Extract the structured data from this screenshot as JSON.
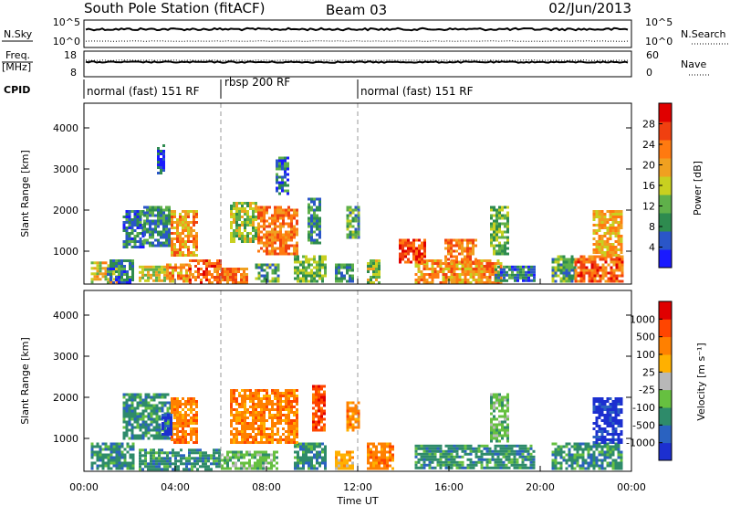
{
  "header": {
    "station": "South Pole Station (fitACF)",
    "beam": "Beam 03",
    "date": "02/Jun/2013"
  },
  "panels": {
    "nsky": {
      "left_label": "N.Sky",
      "left_ticks": [
        "10^5",
        "10^0"
      ],
      "right_label": "N.Search",
      "right_ticks": [
        "10^5",
        "10^0"
      ]
    },
    "freq": {
      "left_label_1": "Freq.",
      "left_label_2": "[MHz]",
      "left_ticks": [
        "18",
        "8"
      ],
      "right_label": "Nave",
      "right_ticks": [
        "60",
        "0"
      ]
    },
    "cpid": {
      "label": "CPID",
      "modes": [
        {
          "text": "normal (fast) 151 RF",
          "start_hour": 0
        },
        {
          "text": "rbsp 200 RF",
          "start_hour": 6
        },
        {
          "text": "normal (fast) 151 RF",
          "start_hour": 12
        }
      ]
    }
  },
  "colors": {
    "power_scale": [
      "#1a1aff",
      "#2a56c8",
      "#2e8b4f",
      "#5fb04a",
      "#c8d020",
      "#f0a020",
      "#ff7a10",
      "#f04010",
      "#e00000"
    ],
    "velocity_scale": [
      "#1c2fd0",
      "#2a62c0",
      "#2e8b6a",
      "#66c040",
      "#b8b8b8",
      "#ffb000",
      "#ff8000",
      "#ff4500",
      "#e00000"
    ]
  },
  "chart_data": [
    {
      "type": "heatmap",
      "name": "power",
      "ylabel": "Slant Range [km]",
      "yticks": [
        1000,
        2000,
        3000,
        4000
      ],
      "ylim": [
        200,
        4600
      ],
      "xlim": [
        0,
        24
      ],
      "colorbar": {
        "label": "Power [dB]",
        "ticks": [
          "4",
          "8",
          "12",
          "16",
          "20",
          "24",
          "28"
        ],
        "range": [
          0,
          32
        ]
      },
      "mode_change_hours": [
        6,
        12
      ],
      "blobs": [
        {
          "x0": 0.3,
          "x1": 1.5,
          "y0": 250,
          "y1": 750,
          "v": 18
        },
        {
          "x0": 1.0,
          "x1": 2.2,
          "y0": 250,
          "y1": 800,
          "v": 7
        },
        {
          "x0": 2.4,
          "x1": 3.6,
          "y0": 250,
          "y1": 650,
          "v": 16
        },
        {
          "x0": 3.6,
          "x1": 4.6,
          "y0": 250,
          "y1": 700,
          "v": 22
        },
        {
          "x0": 4.6,
          "x1": 6.0,
          "y0": 250,
          "y1": 800,
          "v": 26
        },
        {
          "x0": 6.0,
          "x1": 7.2,
          "y0": 250,
          "y1": 600,
          "v": 24
        },
        {
          "x0": 7.5,
          "x1": 8.5,
          "y0": 250,
          "y1": 700,
          "v": 10
        },
        {
          "x0": 9.2,
          "x1": 10.6,
          "y0": 250,
          "y1": 900,
          "v": 12
        },
        {
          "x0": 11.0,
          "x1": 11.8,
          "y0": 250,
          "y1": 700,
          "v": 8
        },
        {
          "x0": 12.4,
          "x1": 13.0,
          "y0": 250,
          "y1": 800,
          "v": 14
        },
        {
          "x0": 14.5,
          "x1": 18.3,
          "y0": 250,
          "y1": 800,
          "v": 22
        },
        {
          "x0": 18.0,
          "x1": 19.7,
          "y0": 250,
          "y1": 650,
          "v": 6
        },
        {
          "x0": 20.5,
          "x1": 21.5,
          "y0": 250,
          "y1": 900,
          "v": 10
        },
        {
          "x0": 21.5,
          "x1": 23.6,
          "y0": 250,
          "y1": 900,
          "v": 26
        },
        {
          "x0": 1.7,
          "x1": 2.6,
          "y0": 1100,
          "y1": 2000,
          "v": 6
        },
        {
          "x0": 2.6,
          "x1": 3.8,
          "y0": 1100,
          "y1": 2100,
          "v": 8
        },
        {
          "x0": 3.8,
          "x1": 5.0,
          "y0": 900,
          "y1": 2000,
          "v": 22
        },
        {
          "x0": 6.4,
          "x1": 7.6,
          "y0": 1200,
          "y1": 2200,
          "v": 14
        },
        {
          "x0": 7.6,
          "x1": 9.4,
          "y0": 900,
          "y1": 2100,
          "v": 24
        },
        {
          "x0": 9.8,
          "x1": 10.3,
          "y0": 1200,
          "y1": 2300,
          "v": 8
        },
        {
          "x0": 11.5,
          "x1": 12.0,
          "y0": 1300,
          "y1": 2100,
          "v": 10
        },
        {
          "x0": 13.8,
          "x1": 15.0,
          "y0": 700,
          "y1": 1300,
          "v": 28
        },
        {
          "x0": 15.8,
          "x1": 17.2,
          "y0": 700,
          "y1": 1300,
          "v": 24
        },
        {
          "x0": 17.8,
          "x1": 18.6,
          "y0": 900,
          "y1": 2100,
          "v": 12
        },
        {
          "x0": 22.3,
          "x1": 23.6,
          "y0": 900,
          "y1": 2000,
          "v": 20
        },
        {
          "x0": 8.4,
          "x1": 8.9,
          "y0": 2400,
          "y1": 3300,
          "v": 6
        },
        {
          "x0": 3.2,
          "x1": 3.5,
          "y0": 2900,
          "y1": 3600,
          "v": 4
        }
      ]
    },
    {
      "type": "heatmap",
      "name": "velocity",
      "ylabel": "Slant Range [km]",
      "xlabel": "Time UT",
      "xticks": [
        "00:00",
        "04:00",
        "08:00",
        "12:00",
        "16:00",
        "20:00",
        "00:00"
      ],
      "yticks": [
        1000,
        2000,
        3000,
        4000
      ],
      "ylim": [
        200,
        4600
      ],
      "xlim": [
        0,
        24
      ],
      "colorbar": {
        "label": "Velocity [m s⁻¹]",
        "ticks": [
          "1000",
          "500",
          "100",
          "25",
          "-25",
          "-100",
          "-500",
          "-1000"
        ]
      },
      "mode_change_hours": [
        6,
        12
      ],
      "blobs": [
        {
          "x0": 0.3,
          "x1": 2.2,
          "y0": 250,
          "y1": 900,
          "v": 2
        },
        {
          "x0": 2.4,
          "x1": 6.0,
          "y0": 250,
          "y1": 750,
          "v": 2
        },
        {
          "x0": 6.0,
          "x1": 8.5,
          "y0": 250,
          "y1": 700,
          "v": 3
        },
        {
          "x0": 9.2,
          "x1": 10.6,
          "y0": 250,
          "y1": 900,
          "v": 2
        },
        {
          "x0": 11.0,
          "x1": 11.8,
          "y0": 250,
          "y1": 700,
          "v": 5
        },
        {
          "x0": 12.4,
          "x1": 13.6,
          "y0": 250,
          "y1": 900,
          "v": 6
        },
        {
          "x0": 14.5,
          "x1": 19.7,
          "y0": 250,
          "y1": 850,
          "v": 2
        },
        {
          "x0": 20.5,
          "x1": 23.6,
          "y0": 250,
          "y1": 900,
          "v": 2
        },
        {
          "x0": 1.7,
          "x1": 3.8,
          "y0": 1000,
          "y1": 2100,
          "v": 2
        },
        {
          "x0": 3.8,
          "x1": 5.0,
          "y0": 900,
          "y1": 2000,
          "v": 6
        },
        {
          "x0": 6.4,
          "x1": 9.4,
          "y0": 900,
          "y1": 2200,
          "v": 6
        },
        {
          "x0": 10.0,
          "x1": 10.6,
          "y0": 1200,
          "y1": 2300,
          "v": 7
        },
        {
          "x0": 11.5,
          "x1": 12.0,
          "y0": 1200,
          "y1": 1900,
          "v": 6
        },
        {
          "x0": 22.3,
          "x1": 23.6,
          "y0": 900,
          "y1": 2000,
          "v": 0
        },
        {
          "x0": 3.4,
          "x1": 3.8,
          "y0": 1100,
          "y1": 1600,
          "v": 0
        },
        {
          "x0": 17.8,
          "x1": 18.6,
          "y0": 900,
          "y1": 2100,
          "v": 3
        }
      ]
    }
  ]
}
